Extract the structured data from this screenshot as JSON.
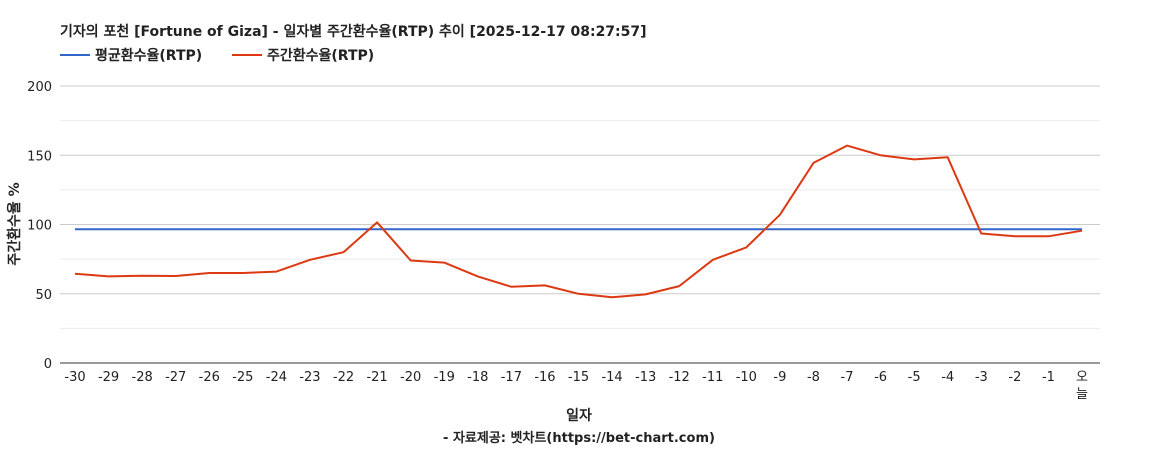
{
  "chart_data": {
    "type": "line",
    "title": "기자의 포천 [Fortune of Giza] - 일자별 주간환수율(RTP) 추이 [2025-12-17 08:27:57]",
    "xlabel": "일자",
    "ylabel": "주간환수율 %",
    "source": "- 자료제공: 벳차트(https://bet-chart.com)",
    "ylim": [
      0,
      200
    ],
    "yticks": [
      "0",
      "50",
      "100",
      "150",
      "200"
    ],
    "categories": [
      "-30",
      "-29",
      "-28",
      "-27",
      "-26",
      "-25",
      "-24",
      "-23",
      "-22",
      "-21",
      "-20",
      "-19",
      "-18",
      "-17",
      "-16",
      "-15",
      "-14",
      "-13",
      "-12",
      "-11",
      "-10",
      "-9",
      "-8",
      "-7",
      "-6",
      "-5",
      "-4",
      "-3",
      "-2",
      "-1",
      "오늘"
    ],
    "legend_position": "top-left",
    "grid": true,
    "series": [
      {
        "name": "평균환수율(RTP)",
        "color": "#3366cc",
        "values": [
          96.5,
          96.5,
          96.5,
          96.5,
          96.5,
          96.5,
          96.5,
          96.5,
          96.5,
          96.5,
          96.5,
          96.5,
          96.5,
          96.5,
          96.5,
          96.5,
          96.5,
          96.5,
          96.5,
          96.5,
          96.5,
          96.5,
          96.5,
          96.5,
          96.5,
          96.5,
          96.5,
          96.5,
          96.5,
          96.5,
          96.5
        ]
      },
      {
        "name": "주간환수율(RTP)",
        "color": "#dc3912",
        "values": [
          64.5,
          62.5,
          63,
          62.8,
          65,
          65,
          66,
          74.5,
          80,
          101.5,
          74,
          72.5,
          62.5,
          55,
          56,
          50,
          47.5,
          49.5,
          55.5,
          74.5,
          83.5,
          107,
          144.5,
          157,
          150,
          147,
          148.5,
          93.5,
          91.5,
          91.5,
          95.5
        ]
      }
    ]
  }
}
